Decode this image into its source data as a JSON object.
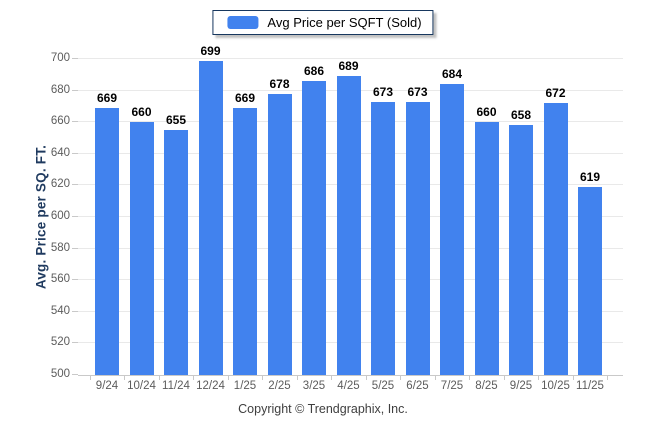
{
  "chart_data": {
    "type": "bar",
    "title": "",
    "legend": {
      "label": "Avg Price per SQFT (Sold)",
      "position": "top-center"
    },
    "categories": [
      "9/24",
      "10/24",
      "11/24",
      "12/24",
      "1/25",
      "2/25",
      "3/25",
      "4/25",
      "5/25",
      "6/25",
      "7/25",
      "8/25",
      "9/25",
      "10/25",
      "11/25"
    ],
    "values": [
      669,
      660,
      655,
      699,
      669,
      678,
      686,
      689,
      673,
      673,
      684,
      660,
      658,
      672,
      619
    ],
    "xlabel": "",
    "ylabel": "Avg. Price per SQ. FT.",
    "ylim": [
      500,
      700
    ],
    "ytick_step": 20,
    "grid": true,
    "bar_color": "#4182EE",
    "value_labels_shown": true
  },
  "footer": {
    "copyright": "Copyright © Trendgraphix, Inc."
  },
  "colors": {
    "bar_blue": "#4182EE",
    "legend_border_navy": "#17375E",
    "axis_title_navy": "#1F3A5F",
    "gridline_gray": "#E9E9E9",
    "axis_line_gray": "#C9C9C9",
    "tick_label_gray": "#5C5C5C",
    "value_label_black": "#000000",
    "footer_gray": "#3F3F3F",
    "background": "#FFFFFF"
  }
}
